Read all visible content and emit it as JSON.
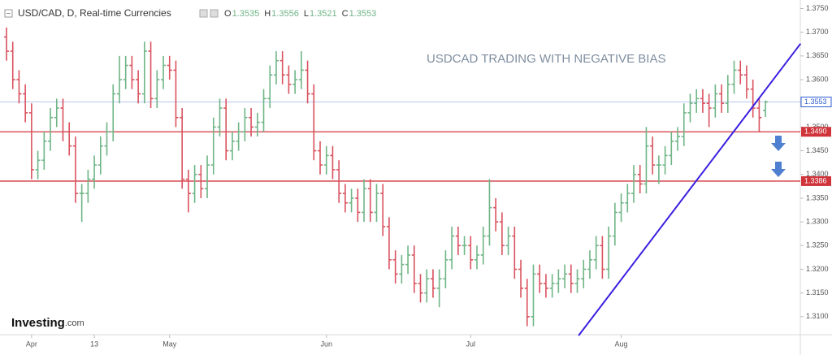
{
  "chart_data": {
    "type": "ohlc",
    "title": "USD/CAD, D, Real-time Currencies",
    "ohlc_labels": [
      "O",
      "H",
      "L",
      "C"
    ],
    "up_color": "#6fb586",
    "down_color": "#d9525e",
    "categories": [
      null,
      null,
      null,
      null,
      "Apr",
      null,
      null,
      null,
      null,
      null,
      null,
      null,
      null,
      null,
      "13",
      null,
      null,
      null,
      null,
      null,
      null,
      null,
      null,
      null,
      null,
      null,
      "May",
      null,
      null,
      null,
      null,
      null,
      null,
      null,
      null,
      null,
      null,
      null,
      null,
      null,
      null,
      null,
      null,
      null,
      null,
      null,
      null,
      null,
      null,
      null,
      null,
      "Jun",
      null,
      null,
      null,
      null,
      null,
      null,
      null,
      null,
      null,
      null,
      null,
      null,
      null,
      null,
      null,
      null,
      null,
      null,
      null,
      null,
      null,
      null,
      "Jul",
      null,
      null,
      null,
      null,
      null,
      null,
      null,
      null,
      null,
      null,
      null,
      null,
      null,
      null,
      null,
      null,
      null,
      null,
      null,
      null,
      null,
      null,
      null,
      "Aug",
      null,
      null,
      null,
      null,
      null,
      null,
      null,
      null,
      null,
      null,
      null,
      null,
      null,
      null,
      null,
      null,
      null,
      null,
      null,
      null,
      null,
      null,
      null
    ],
    "open": [
      1.369,
      1.366,
      1.36,
      1.357,
      1.353,
      1.341,
      1.343,
      1.347,
      1.352,
      1.354,
      1.349,
      1.346,
      1.336,
      1.336,
      1.339,
      1.342,
      1.346,
      1.349,
      1.357,
      1.36,
      1.363,
      1.36,
      1.357,
      1.366,
      1.356,
      1.36,
      1.363,
      1.362,
      1.352,
      1.339,
      1.336,
      1.34,
      1.337,
      1.342,
      1.35,
      1.354,
      1.345,
      1.347,
      1.349,
      1.352,
      1.35,
      1.351,
      1.356,
      1.361,
      1.364,
      1.361,
      1.359,
      1.36,
      1.362,
      1.357,
      1.345,
      1.342,
      1.344,
      1.341,
      1.336,
      1.334,
      1.335,
      1.332,
      1.337,
      1.332,
      1.336,
      1.329,
      1.322,
      1.319,
      1.321,
      1.323,
      1.317,
      1.315,
      1.318,
      1.316,
      1.318,
      1.322,
      1.327,
      1.325,
      1.325,
      1.322,
      1.323,
      1.327,
      1.333,
      1.33,
      1.325,
      1.327,
      1.32,
      1.316,
      1.31,
      1.319,
      1.317,
      1.316,
      1.317,
      1.318,
      1.319,
      1.317,
      1.318,
      1.32,
      1.322,
      1.325,
      1.32,
      1.327,
      1.332,
      1.334,
      1.336,
      1.34,
      1.338,
      1.346,
      1.342,
      1.342,
      1.344,
      1.347,
      1.348,
      1.353,
      1.355,
      1.356,
      1.355,
      1.354,
      1.357,
      1.355,
      1.359,
      1.362,
      1.361,
      1.358,
      1.354,
      1.3535
    ],
    "high": [
      1.371,
      1.368,
      1.362,
      1.359,
      1.355,
      1.345,
      1.349,
      1.354,
      1.356,
      1.356,
      1.351,
      1.348,
      1.338,
      1.341,
      1.344,
      1.348,
      1.351,
      1.359,
      1.365,
      1.365,
      1.365,
      1.362,
      1.368,
      1.368,
      1.362,
      1.365,
      1.365,
      1.364,
      1.354,
      1.341,
      1.342,
      1.342,
      1.344,
      1.352,
      1.356,
      1.356,
      1.349,
      1.351,
      1.354,
      1.354,
      1.353,
      1.358,
      1.363,
      1.366,
      1.366,
      1.363,
      1.362,
      1.366,
      1.364,
      1.359,
      1.347,
      1.346,
      1.346,
      1.343,
      1.338,
      1.337,
      1.337,
      1.339,
      1.339,
      1.338,
      1.338,
      1.331,
      1.324,
      1.323,
      1.325,
      1.325,
      1.319,
      1.32,
      1.32,
      1.32,
      1.324,
      1.329,
      1.329,
      1.327,
      1.327,
      1.325,
      1.329,
      1.339,
      1.335,
      1.332,
      1.329,
      1.329,
      1.322,
      1.318,
      1.321,
      1.321,
      1.319,
      1.319,
      1.32,
      1.321,
      1.321,
      1.32,
      1.322,
      1.324,
      1.327,
      1.327,
      1.329,
      1.334,
      1.336,
      1.338,
      1.342,
      1.342,
      1.35,
      1.348,
      1.344,
      1.346,
      1.349,
      1.35,
      1.355,
      1.357,
      1.358,
      1.358,
      1.357,
      1.359,
      1.359,
      1.361,
      1.364,
      1.364,
      1.363,
      1.36,
      1.356,
      1.3556
    ],
    "low": [
      1.364,
      1.358,
      1.355,
      1.351,
      1.339,
      1.339,
      1.341,
      1.345,
      1.35,
      1.347,
      1.344,
      1.334,
      1.33,
      1.334,
      1.337,
      1.34,
      1.344,
      1.347,
      1.355,
      1.358,
      1.358,
      1.355,
      1.355,
      1.354,
      1.354,
      1.358,
      1.36,
      1.35,
      1.337,
      1.332,
      1.334,
      1.335,
      1.335,
      1.34,
      1.348,
      1.343,
      1.343,
      1.345,
      1.347,
      1.348,
      1.348,
      1.349,
      1.354,
      1.359,
      1.359,
      1.357,
      1.357,
      1.358,
      1.355,
      1.343,
      1.34,
      1.34,
      1.339,
      1.334,
      1.332,
      1.332,
      1.33,
      1.33,
      1.33,
      1.33,
      1.327,
      1.32,
      1.317,
      1.317,
      1.319,
      1.315,
      1.313,
      1.313,
      1.314,
      1.312,
      1.316,
      1.32,
      1.323,
      1.323,
      1.32,
      1.32,
      1.321,
      1.325,
      1.328,
      1.323,
      1.323,
      1.318,
      1.314,
      1.308,
      1.308,
      1.315,
      1.314,
      1.314,
      1.315,
      1.316,
      1.315,
      1.315,
      1.316,
      1.318,
      1.32,
      1.318,
      1.318,
      1.325,
      1.33,
      1.332,
      1.334,
      1.336,
      1.336,
      1.34,
      1.338,
      1.34,
      1.342,
      1.345,
      1.346,
      1.351,
      1.353,
      1.353,
      1.35,
      1.352,
      1.353,
      1.353,
      1.357,
      1.359,
      1.356,
      1.352,
      1.349,
      1.3521
    ],
    "close": [
      1.366,
      1.36,
      1.357,
      1.353,
      1.341,
      1.343,
      1.347,
      1.352,
      1.354,
      1.349,
      1.346,
      1.336,
      1.336,
      1.339,
      1.342,
      1.346,
      1.349,
      1.357,
      1.36,
      1.363,
      1.36,
      1.357,
      1.366,
      1.356,
      1.36,
      1.363,
      1.362,
      1.352,
      1.339,
      1.336,
      1.34,
      1.337,
      1.342,
      1.35,
      1.354,
      1.345,
      1.347,
      1.349,
      1.352,
      1.35,
      1.351,
      1.356,
      1.361,
      1.364,
      1.361,
      1.359,
      1.36,
      1.362,
      1.357,
      1.345,
      1.342,
      1.344,
      1.341,
      1.336,
      1.334,
      1.335,
      1.332,
      1.337,
      1.332,
      1.336,
      1.329,
      1.322,
      1.319,
      1.321,
      1.323,
      1.317,
      1.315,
      1.318,
      1.316,
      1.318,
      1.322,
      1.327,
      1.325,
      1.325,
      1.322,
      1.323,
      1.327,
      1.333,
      1.33,
      1.325,
      1.327,
      1.32,
      1.316,
      1.31,
      1.319,
      1.317,
      1.316,
      1.317,
      1.318,
      1.319,
      1.317,
      1.318,
      1.32,
      1.322,
      1.325,
      1.32,
      1.327,
      1.332,
      1.334,
      1.336,
      1.34,
      1.338,
      1.346,
      1.342,
      1.342,
      1.344,
      1.347,
      1.348,
      1.353,
      1.355,
      1.356,
      1.355,
      1.354,
      1.357,
      1.355,
      1.359,
      1.362,
      1.361,
      1.358,
      1.354,
      1.352,
      1.3553
    ],
    "ylim": [
      1.3062,
      1.3768
    ],
    "yticks": [
      {
        "value": 1.31,
        "label": "1.3100"
      },
      {
        "value": 1.315,
        "label": "1.3150"
      },
      {
        "value": 1.32,
        "label": "1.3200"
      },
      {
        "value": 1.325,
        "label": "1.3250"
      },
      {
        "value": 1.33,
        "label": "1.3300"
      },
      {
        "value": 1.335,
        "label": "1.3350"
      },
      {
        "value": 1.34,
        "label": "1.3400"
      },
      {
        "value": 1.345,
        "label": "1.3450"
      },
      {
        "value": 1.35,
        "label": "1.3500"
      },
      {
        "value": 1.355,
        "label": "1.3550"
      },
      {
        "value": 1.36,
        "label": "1.3600"
      },
      {
        "value": 1.365,
        "label": "1.3650"
      },
      {
        "value": 1.37,
        "label": "1.3700"
      },
      {
        "value": 1.375,
        "label": "1.3750"
      }
    ],
    "price_line": {
      "value": 1.3553,
      "label": "1.3553",
      "color": "#2f5fd0"
    },
    "hlines": [
      {
        "value": 1.349,
        "label": "1.3490",
        "color": "#d0343b"
      },
      {
        "value": 1.3386,
        "label": "1.3386",
        "color": "#d0343b"
      }
    ],
    "trendline": {
      "x": [
        91.2,
        126.6
      ],
      "y": [
        1.306,
        1.3676
      ],
      "color": "#3a1fe0"
    },
    "annotation": "USDCAD TRADING WITH NEGATIVE BIAS",
    "logo": {
      "brand": "Investing",
      "suffix": ".com"
    }
  }
}
